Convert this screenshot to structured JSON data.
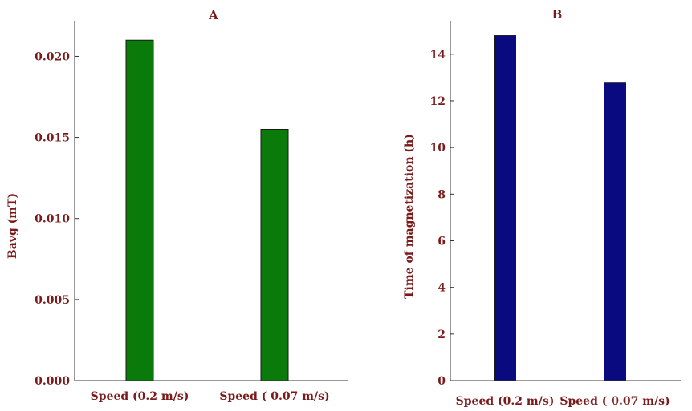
{
  "chart_data": [
    {
      "type": "bar",
      "title": "A",
      "categories": [
        "Speed (0.2 m/s)",
        "Speed ( 0.07 m/s)"
      ],
      "values": [
        0.021,
        0.0155
      ],
      "xlabel": "",
      "ylabel": "Bavg (mT)",
      "ylim": [
        0,
        0.022
      ],
      "yticks": [
        0,
        0.005,
        0.01,
        0.015,
        0.02
      ],
      "ytick_labels": [
        "0.000",
        "0.005",
        "0.010",
        "0.015",
        "0.020"
      ],
      "bar_color": "#0a7a0a",
      "text_color": "#7a1a1a",
      "grid": false
    },
    {
      "type": "bar",
      "title": "B",
      "categories": [
        "Speed (0.2 m/s)",
        "Speed ( 0.07 m/s)"
      ],
      "values": [
        14.8,
        12.8
      ],
      "xlabel": "",
      "ylabel": "Time of magnetization (h)",
      "ylim": [
        0,
        15.3
      ],
      "yticks": [
        0,
        2,
        4,
        6,
        8,
        10,
        12,
        14
      ],
      "ytick_labels": [
        "0",
        "2",
        "4",
        "6",
        "8",
        "10",
        "12",
        "14"
      ],
      "bar_color": "#0a0a80",
      "text_color": "#7a1a1a",
      "grid": false
    }
  ]
}
